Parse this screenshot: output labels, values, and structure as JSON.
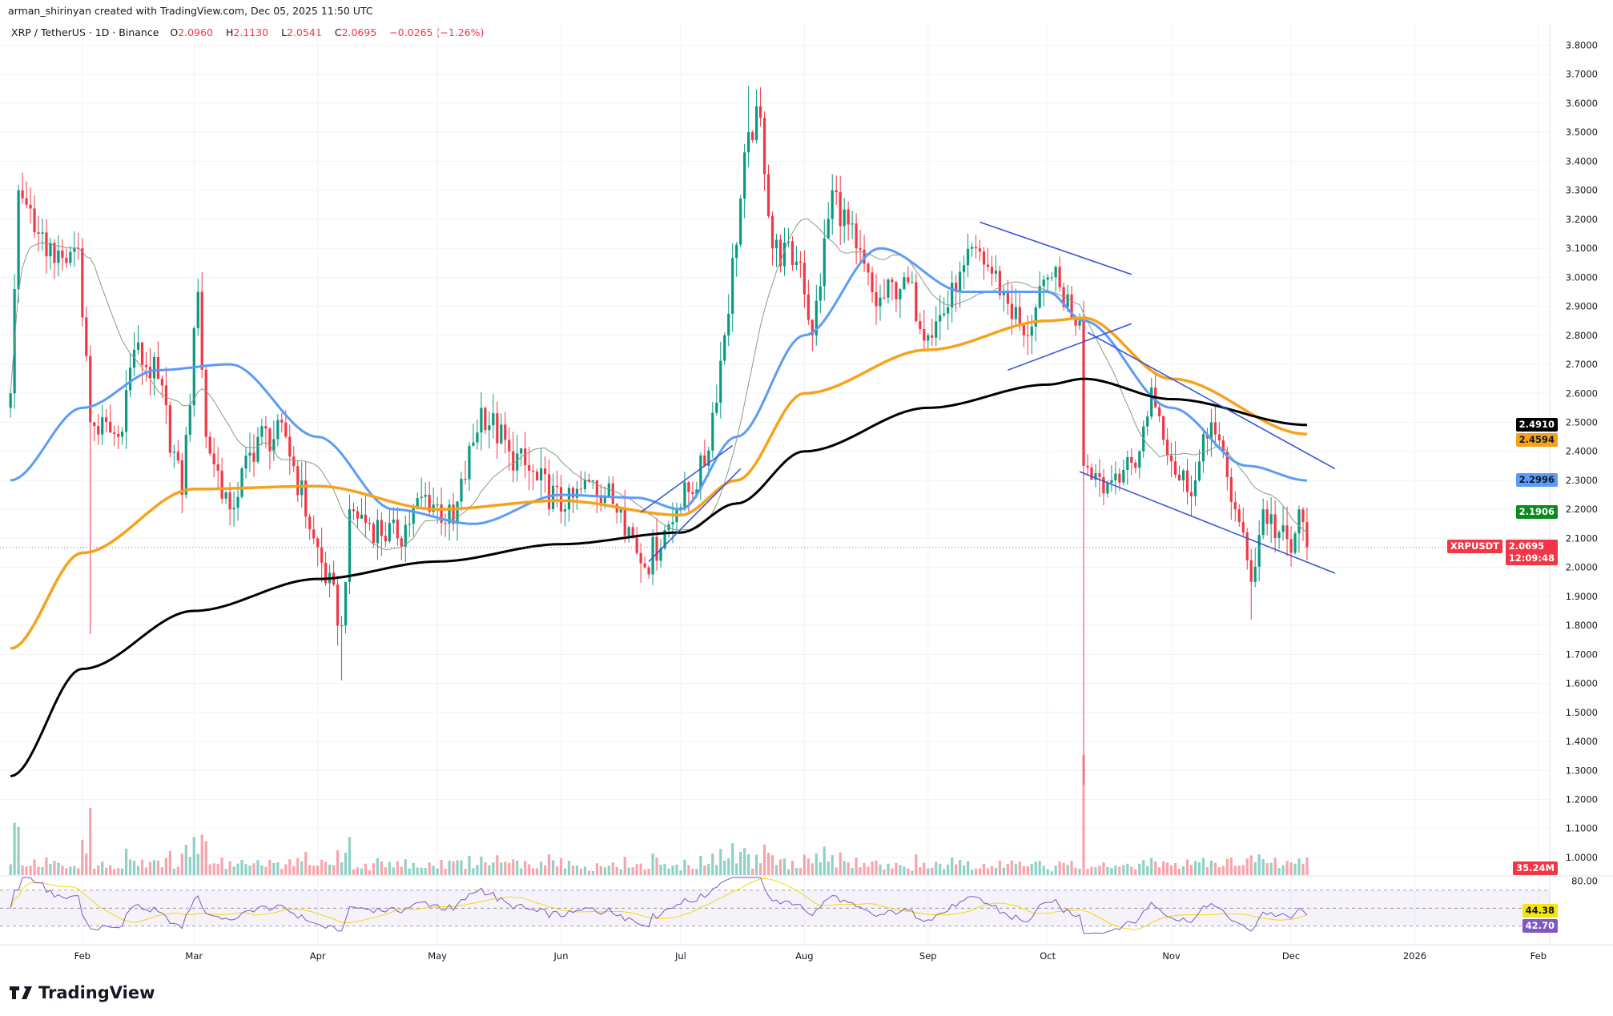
{
  "header": {
    "credit": "arman_shirinyan created with TradingView.com, Dec 05, 2025 11:50 UTC",
    "symbol": "XRP / TetherUS · 1D · Binance",
    "open_label": "O",
    "open": "2.0960",
    "high_label": "H",
    "high": "2.1130",
    "low_label": "L",
    "low": "2.0541",
    "close_label": "C",
    "close": "2.0695",
    "change": "−0.0265 (−1.26%)"
  },
  "price_axis": {
    "ticks": [
      "3.8000",
      "3.7000",
      "3.6000",
      "3.5000",
      "3.4000",
      "3.3000",
      "3.2000",
      "3.1000",
      "3.0000",
      "2.9000",
      "2.8000",
      "2.7000",
      "2.6000",
      "2.5000",
      "2.4000",
      "2.3000",
      "2.2000",
      "2.1000",
      "2.0000",
      "1.9000",
      "1.8000",
      "1.7000",
      "1.6000",
      "1.5000",
      "1.4000",
      "1.3000",
      "1.2000",
      "1.1000",
      "1.0000"
    ]
  },
  "badges": {
    "ma200": {
      "value": "2.4910",
      "color": "#000000",
      "text_color": "#ffffff"
    },
    "ma100": {
      "value": "2.4594",
      "color": "#f7a21b",
      "text_color": "#131722"
    },
    "ma50": {
      "value": "2.2996",
      "color": "#5b9cf6",
      "text_color": "#131722"
    },
    "ma20": {
      "value": "2.1906",
      "color": "#0b8a1f",
      "text_color": "#ffffff"
    },
    "symbol_tag": "XRPUSDT",
    "last_price": "2.0695",
    "countdown": "12:09:48",
    "last_color": "#f23645",
    "volume": "35.24M",
    "rsi_top_tick": "80.00",
    "rsi_ma": "44.38",
    "rsi": "42.70",
    "rsi_ma_color": "#f5e50a",
    "rsi_color": "#7e57c2"
  },
  "time_axis": {
    "labels": [
      {
        "text": "Feb",
        "date": "2025-02-01"
      },
      {
        "text": "Mar",
        "date": "2025-03-01"
      },
      {
        "text": "Apr",
        "date": "2025-04-01"
      },
      {
        "text": "May",
        "date": "2025-05-01"
      },
      {
        "text": "Jun",
        "date": "2025-06-01"
      },
      {
        "text": "Jul",
        "date": "2025-07-01"
      },
      {
        "text": "Aug",
        "date": "2025-08-01"
      },
      {
        "text": "Sep",
        "date": "2025-09-01"
      },
      {
        "text": "Oct",
        "date": "2025-10-01"
      },
      {
        "text": "Nov",
        "date": "2025-11-01"
      },
      {
        "text": "Dec",
        "date": "2025-12-01"
      },
      {
        "text": "2026",
        "date": "2026-01-01"
      },
      {
        "text": "Feb",
        "date": "2026-02-01"
      }
    ]
  },
  "chart_data": {
    "type": "candlestick",
    "symbol": "XRPUSDT",
    "interval": "1D",
    "ylim": [
      1.0,
      3.8
    ],
    "colors": {
      "up": "#089981",
      "down": "#f23645",
      "ma20": "#8a9a80",
      "ma50": "#5b9cf6",
      "ma100": "#f7a21b",
      "ma200": "#000000",
      "trendline": "#3a56d4"
    },
    "close_anchors": [
      [
        "2025-01-14",
        2.6
      ],
      [
        "2025-01-16",
        3.3
      ],
      [
        "2025-01-18",
        3.25
      ],
      [
        "2025-01-21",
        3.15
      ],
      [
        "2025-01-25",
        3.05
      ],
      [
        "2025-01-28",
        3.05
      ],
      [
        "2025-01-31",
        3.1
      ],
      [
        "2025-02-03",
        2.5
      ],
      [
        "2025-02-10",
        2.45
      ],
      [
        "2025-02-14",
        2.75
      ],
      [
        "2025-02-20",
        2.65
      ],
      [
        "2025-02-26",
        2.25
      ],
      [
        "2025-03-02",
        2.95
      ],
      [
        "2025-03-04",
        2.45
      ],
      [
        "2025-03-10",
        2.2
      ],
      [
        "2025-03-17",
        2.45
      ],
      [
        "2025-03-24",
        2.45
      ],
      [
        "2025-03-31",
        2.1
      ],
      [
        "2025-04-07",
        1.8
      ],
      [
        "2025-04-09",
        2.2
      ],
      [
        "2025-04-14",
        2.15
      ],
      [
        "2025-04-21",
        2.1
      ],
      [
        "2025-04-28",
        2.25
      ],
      [
        "2025-05-05",
        2.15
      ],
      [
        "2025-05-12",
        2.55
      ],
      [
        "2025-05-19",
        2.4
      ],
      [
        "2025-05-26",
        2.3
      ],
      [
        "2025-06-02",
        2.2
      ],
      [
        "2025-06-09",
        2.3
      ],
      [
        "2025-06-16",
        2.2
      ],
      [
        "2025-06-22",
        2.0
      ],
      [
        "2025-06-30",
        2.2
      ],
      [
        "2025-07-07",
        2.35
      ],
      [
        "2025-07-12",
        2.8
      ],
      [
        "2025-07-18",
        3.5
      ],
      [
        "2025-07-21",
        3.55
      ],
      [
        "2025-07-24",
        3.1
      ],
      [
        "2025-07-31",
        3.05
      ],
      [
        "2025-08-03",
        2.8
      ],
      [
        "2025-08-08",
        3.3
      ],
      [
        "2025-08-14",
        3.1
      ],
      [
        "2025-08-19",
        2.9
      ],
      [
        "2025-08-26",
        3.0
      ],
      [
        "2025-09-01",
        2.8
      ],
      [
        "2025-09-08",
        2.95
      ],
      [
        "2025-09-13",
        3.1
      ],
      [
        "2025-09-20",
        2.95
      ],
      [
        "2025-09-25",
        2.8
      ],
      [
        "2025-10-02",
        3.0
      ],
      [
        "2025-10-09",
        2.85
      ],
      [
        "2025-10-10",
        2.35
      ],
      [
        "2025-10-17",
        2.3
      ],
      [
        "2025-10-24",
        2.4
      ],
      [
        "2025-10-27",
        2.62
      ],
      [
        "2025-11-03",
        2.3
      ],
      [
        "2025-11-07",
        2.3
      ],
      [
        "2025-11-11",
        2.5
      ],
      [
        "2025-11-17",
        2.2
      ],
      [
        "2025-11-21",
        1.95
      ],
      [
        "2025-11-24",
        2.2
      ],
      [
        "2025-12-01",
        2.05
      ],
      [
        "2025-12-03",
        2.2
      ],
      [
        "2025-12-05",
        2.0695
      ]
    ],
    "notable_wicks": [
      {
        "date": "2025-07-18",
        "high": 3.66
      },
      {
        "date": "2025-02-03",
        "low": 1.77
      },
      {
        "date": "2025-04-07",
        "low": 1.61
      },
      {
        "date": "2025-10-10",
        "low": 1.25
      },
      {
        "date": "2025-11-21",
        "low": 1.82
      }
    ],
    "moving_averages": {
      "ma200": [
        [
          "2025-01-14",
          1.28
        ],
        [
          "2025-02-01",
          1.65
        ],
        [
          "2025-03-01",
          1.85
        ],
        [
          "2025-04-01",
          1.96
        ],
        [
          "2025-05-01",
          2.02
        ],
        [
          "2025-06-01",
          2.08
        ],
        [
          "2025-07-01",
          2.12
        ],
        [
          "2025-07-15",
          2.22
        ],
        [
          "2025-08-01",
          2.4
        ],
        [
          "2025-09-01",
          2.55
        ],
        [
          "2025-10-01",
          2.63
        ],
        [
          "2025-10-10",
          2.65
        ],
        [
          "2025-11-01",
          2.58
        ],
        [
          "2025-12-05",
          2.491
        ]
      ],
      "ma100": [
        [
          "2025-01-14",
          1.72
        ],
        [
          "2025-02-01",
          2.05
        ],
        [
          "2025-03-01",
          2.27
        ],
        [
          "2025-04-01",
          2.28
        ],
        [
          "2025-05-01",
          2.2
        ],
        [
          "2025-06-01",
          2.23
        ],
        [
          "2025-07-01",
          2.18
        ],
        [
          "2025-07-15",
          2.3
        ],
        [
          "2025-08-01",
          2.6
        ],
        [
          "2025-09-01",
          2.75
        ],
        [
          "2025-10-01",
          2.85
        ],
        [
          "2025-10-10",
          2.86
        ],
        [
          "2025-11-01",
          2.65
        ],
        [
          "2025-12-05",
          2.4594
        ]
      ],
      "ma50": [
        [
          "2025-01-14",
          2.3
        ],
        [
          "2025-02-01",
          2.55
        ],
        [
          "2025-02-20",
          2.68
        ],
        [
          "2025-03-10",
          2.7
        ],
        [
          "2025-04-01",
          2.45
        ],
        [
          "2025-04-20",
          2.2
        ],
        [
          "2025-05-10",
          2.15
        ],
        [
          "2025-06-01",
          2.25
        ],
        [
          "2025-06-20",
          2.24
        ],
        [
          "2025-07-01",
          2.2
        ],
        [
          "2025-07-15",
          2.45
        ],
        [
          "2025-08-01",
          2.8
        ],
        [
          "2025-08-20",
          3.1
        ],
        [
          "2025-09-10",
          2.95
        ],
        [
          "2025-10-01",
          2.95
        ],
        [
          "2025-10-10",
          2.85
        ],
        [
          "2025-11-01",
          2.55
        ],
        [
          "2025-11-20",
          2.35
        ],
        [
          "2025-12-05",
          2.2996
        ]
      ]
    },
    "trendlines": [
      [
        [
          "2025-09-14",
          3.19
        ],
        [
          "2025-10-22",
          3.01
        ]
      ],
      [
        [
          "2025-09-21",
          2.68
        ],
        [
          "2025-10-22",
          2.84
        ]
      ],
      [
        [
          "2025-10-11",
          2.81
        ],
        [
          "2025-12-12",
          2.34
        ]
      ],
      [
        [
          "2025-10-09",
          2.33
        ],
        [
          "2025-12-12",
          1.98
        ]
      ],
      [
        [
          "2025-06-21",
          2.19
        ],
        [
          "2025-07-14",
          2.42
        ]
      ],
      [
        [
          "2025-06-23",
          2.02
        ],
        [
          "2025-07-16",
          2.34
        ]
      ]
    ],
    "rsi": {
      "ylim": [
        20,
        85
      ],
      "bands": [
        70,
        50,
        30
      ],
      "last": 42.7,
      "ma_last": 44.38
    },
    "last_volume": "35.24M"
  },
  "logo": "TradingView"
}
